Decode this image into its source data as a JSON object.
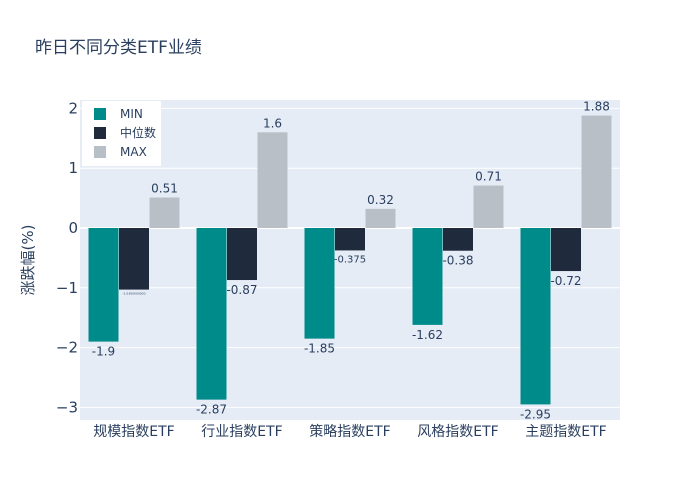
{
  "title": "昨日不同分类ETF业绩",
  "chart_data": {
    "type": "bar",
    "title": "昨日不同分类ETF业绩",
    "xlabel": "",
    "ylabel": "涨跌幅(%)",
    "categories": [
      "规模指数ETF",
      "行业指数ETF",
      "策略指数ETF",
      "风格指数ETF",
      "主题指数ETF"
    ],
    "series": [
      {
        "name": "MIN",
        "color": "#008b8b",
        "values": [
          -1.9,
          -2.87,
          -1.85,
          -1.62,
          -2.95
        ],
        "labels": [
          "-1.9",
          "-2.87",
          "-1.85",
          "-1.62",
          "-2.95"
        ]
      },
      {
        "name": "中位数",
        "color": "#1f2a3c",
        "values": [
          -1.03,
          -0.87,
          -0.375,
          -0.38,
          -0.72
        ],
        "labels": [
          "-1.0300000000",
          "-0.87",
          "-0.375",
          "-0.38",
          "-0.72"
        ]
      },
      {
        "name": "MAX",
        "color": "#b8bfc6",
        "values": [
          0.51,
          1.6,
          0.32,
          0.71,
          1.88
        ],
        "labels": [
          "0.51",
          "1.6",
          "0.32",
          "0.71",
          "1.88"
        ]
      }
    ],
    "ylim": [
      -3.2,
      2.15
    ],
    "yticks": [
      2,
      1,
      0,
      -1,
      -2,
      -3
    ],
    "ytick_labels": [
      "2",
      "1",
      "0",
      "−1",
      "−2",
      "−3"
    ],
    "grid": true,
    "legend_position": "top-left",
    "plot_bg": "#e5ecf6"
  }
}
